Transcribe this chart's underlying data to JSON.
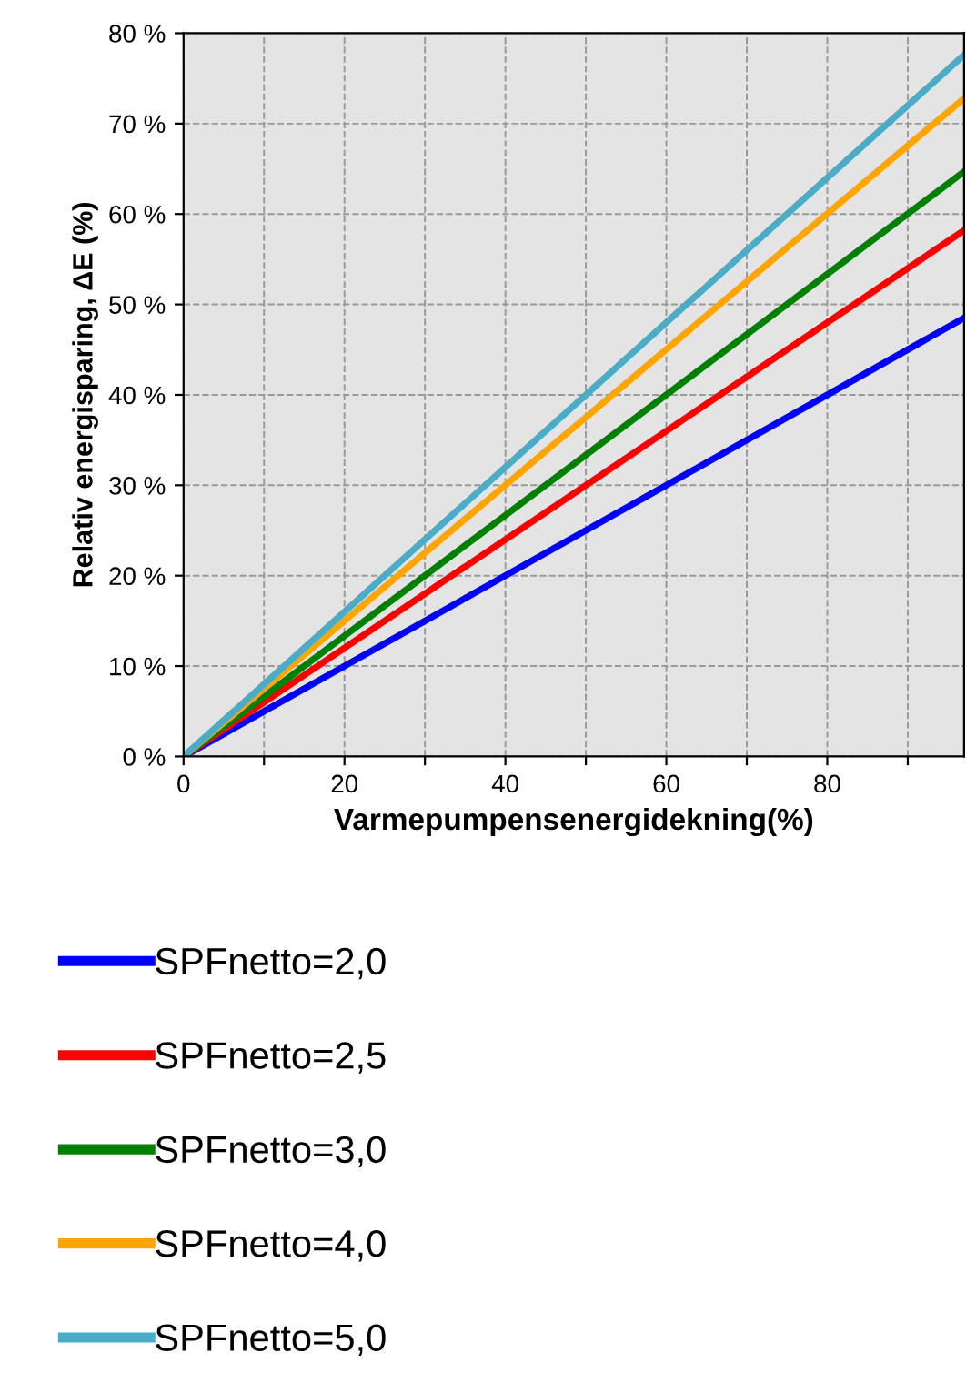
{
  "chart_data": {
    "type": "line",
    "xlabel": "Varmepumpensenergidekning(%)",
    "ylabel": "Relativ energisparing, ΔE (%)",
    "x": [
      0,
      97
    ],
    "series": [
      {
        "name": "SPFnetto=2,0",
        "color": "#0000ff",
        "values": [
          0,
          48.5
        ]
      },
      {
        "name": "SPFnetto=2,5",
        "color": "#ff0000",
        "values": [
          0,
          58.2
        ]
      },
      {
        "name": "SPFnetto=3,0",
        "color": "#008000",
        "values": [
          0,
          64.7
        ]
      },
      {
        "name": "SPFnetto=4,0",
        "color": "#ffa500",
        "values": [
          0,
          72.8
        ]
      },
      {
        "name": "SPFnetto=5,0",
        "color": "#4bacc6",
        "values": [
          0,
          77.6
        ]
      }
    ],
    "xlim": [
      0,
      97
    ],
    "xticks": [
      0,
      {
        "value": 10,
        "label": null
      },
      20,
      {
        "value": 30,
        "label": null
      },
      40,
      {
        "value": 50,
        "label": null
      },
      60,
      {
        "value": 70,
        "label": null
      },
      80,
      {
        "value": 90,
        "label": null
      }
    ],
    "ylim": [
      0,
      80
    ],
    "yticks": [
      {
        "value": 0,
        "label": "0 %"
      },
      {
        "value": 10,
        "label": "10 %"
      },
      {
        "value": 20,
        "label": "20 %"
      },
      {
        "value": 30,
        "label": "30 %"
      },
      {
        "value": 40,
        "label": "40 %"
      },
      {
        "value": 50,
        "label": "50 %"
      },
      {
        "value": 60,
        "label": "60 %"
      },
      {
        "value": 70,
        "label": "70 %"
      },
      {
        "value": 80,
        "label": "80 %"
      }
    ],
    "grid": true,
    "legend": "bottom",
    "line_style": "solid"
  }
}
